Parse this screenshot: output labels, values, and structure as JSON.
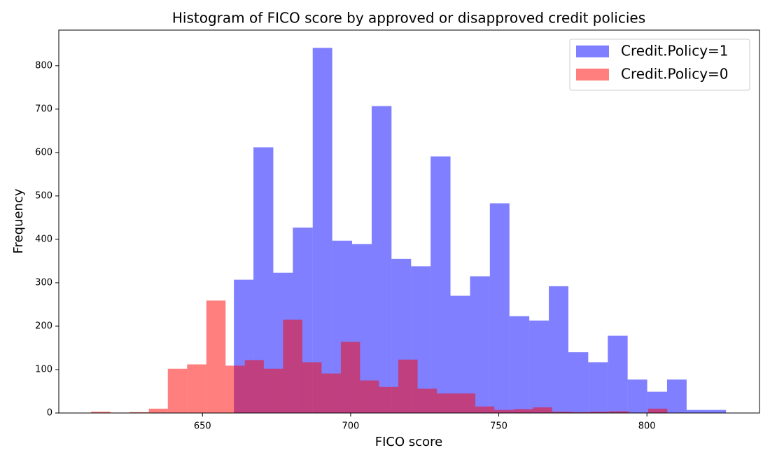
{
  "chart_data": {
    "type": "histogram",
    "title": "Histogram of FICO score by approved or disapproved credit policies",
    "x_label": "FICO score",
    "y_label": "Frequency",
    "xlim": [
      601.5,
      838
    ],
    "ylim": [
      0,
      882
    ],
    "xticks": [
      650,
      700,
      750,
      800
    ],
    "yticks": [
      0,
      100,
      200,
      300,
      400,
      500,
      600,
      700,
      800
    ],
    "legend": "upper right",
    "opacity": 0.5,
    "series": [
      {
        "name": "Credit.Policy=1",
        "color": "#0000ff",
        "bins": [
          660.6,
          667.2,
          673.9,
          680.5,
          687.2,
          693.8,
          700.5,
          707.1,
          713.8,
          720.4,
          727.0,
          733.7,
          740.3,
          747.0,
          753.6,
          760.3,
          766.9,
          773.5,
          780.2,
          786.8,
          793.5,
          800.1,
          806.8,
          813.4,
          820.1,
          826.7
        ],
        "values": [
          307,
          612,
          323,
          427,
          841,
          397,
          389,
          707,
          355,
          338,
          591,
          270,
          315,
          483,
          223,
          213,
          292,
          140,
          117,
          178,
          77,
          49,
          77,
          7,
          7
        ]
      },
      {
        "name": "Credit.Policy=0",
        "color": "#ff0000",
        "bins": [
          612.4,
          618.9,
          625.4,
          631.9,
          638.3,
          644.8,
          651.3,
          657.8,
          664.3,
          670.7,
          677.2,
          683.7,
          690.2,
          696.7,
          703.2,
          709.6,
          716.1,
          722.6,
          729.1,
          735.6,
          742.1,
          748.5,
          755.0,
          761.5,
          768.0,
          774.5,
          780.9,
          787.4,
          793.9,
          800.4,
          806.9
        ],
        "values": [
          3,
          1,
          2,
          10,
          102,
          112,
          259,
          109,
          122,
          102,
          215,
          117,
          91,
          164,
          75,
          60,
          123,
          56,
          45,
          45,
          15,
          7,
          9,
          13,
          3,
          2,
          3,
          4,
          1,
          10
        ]
      }
    ]
  }
}
